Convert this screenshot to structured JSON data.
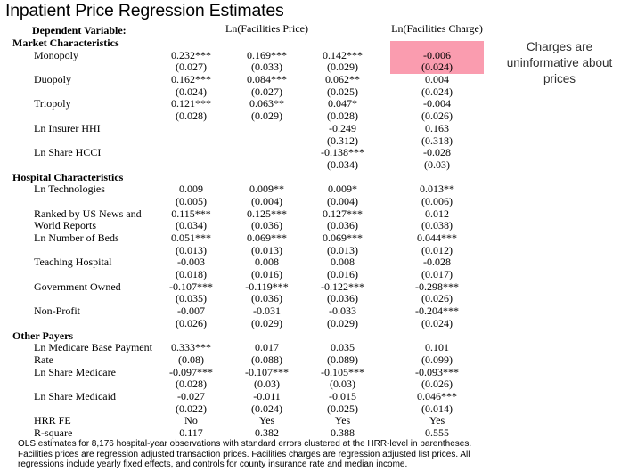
{
  "title": "Inpatient Price Regression Estimates",
  "highlight": {
    "color": "#FA9CAF"
  },
  "annotation": {
    "text": "Charges are uninformative about prices"
  },
  "table": {
    "dependent_variable_label": "Dependent Variable:",
    "column_groups": [
      {
        "label": "Ln(Facilities Price)",
        "columns": 3
      },
      {
        "label": "Ln(Facilities Charge)",
        "columns": 1
      }
    ],
    "rows": [
      {
        "type": "section",
        "label": "Market Characteristics"
      },
      {
        "type": "data",
        "label": "Monopoly",
        "cells": [
          "0.232***",
          "0.169***",
          "0.142***",
          "-0.006"
        ],
        "highlight_cols": [
          3
        ]
      },
      {
        "type": "data",
        "label": "",
        "cells": [
          "(0.027)",
          "(0.033)",
          "(0.029)",
          "(0.024)"
        ],
        "highlight_cols": [
          3
        ]
      },
      {
        "type": "data",
        "label": "Duopoly",
        "cells": [
          "0.162***",
          "0.084***",
          "0.062**",
          "0.004"
        ]
      },
      {
        "type": "data",
        "label": "",
        "cells": [
          "(0.024)",
          "(0.027)",
          "(0.025)",
          "(0.024)"
        ]
      },
      {
        "type": "data",
        "label": "Triopoly",
        "cells": [
          "0.121***",
          "0.063**",
          "0.047*",
          "-0.004"
        ]
      },
      {
        "type": "data",
        "label": "",
        "cells": [
          "(0.028)",
          "(0.029)",
          "(0.028)",
          "(0.026)"
        ]
      },
      {
        "type": "data",
        "label": "Ln Insurer HHI",
        "cells": [
          "",
          "",
          "-0.249",
          "0.163"
        ]
      },
      {
        "type": "data",
        "label": "",
        "cells": [
          "",
          "",
          "(0.312)",
          "(0.318)"
        ]
      },
      {
        "type": "data",
        "label": "Ln Share HCCI",
        "cells": [
          "",
          "",
          "-0.138***",
          "-0.028"
        ]
      },
      {
        "type": "data",
        "label": "",
        "cells": [
          "",
          "",
          "(0.034)",
          "(0.03)"
        ]
      },
      {
        "type": "section",
        "label": "Hospital Characteristics"
      },
      {
        "type": "data",
        "label": "Ln Technologies",
        "cells": [
          "0.009",
          "0.009**",
          "0.009*",
          "0.013**"
        ]
      },
      {
        "type": "data",
        "label": "",
        "cells": [
          "(0.005)",
          "(0.004)",
          "(0.004)",
          "(0.006)"
        ]
      },
      {
        "type": "data",
        "label": "Ranked by US News and",
        "cells": [
          "0.115***",
          "0.125***",
          "0.127***",
          "0.012"
        ]
      },
      {
        "type": "data",
        "label": "World Reports",
        "cells": [
          "(0.034)",
          "(0.036)",
          "(0.036)",
          "(0.038)"
        ]
      },
      {
        "type": "data",
        "label": "Ln Number of Beds",
        "cells": [
          "0.051***",
          "0.069***",
          "0.069***",
          "0.044***"
        ]
      },
      {
        "type": "data",
        "label": "",
        "cells": [
          "(0.013)",
          "(0.013)",
          "(0.013)",
          "(0.012)"
        ]
      },
      {
        "type": "data",
        "label": "Teaching Hospital",
        "cells": [
          "-0.003",
          "0.008",
          "0.008",
          "-0.028"
        ]
      },
      {
        "type": "data",
        "label": "",
        "cells": [
          "(0.018)",
          "(0.016)",
          "(0.016)",
          "(0.017)"
        ]
      },
      {
        "type": "data",
        "label": "Government Owned",
        "cells": [
          "-0.107***",
          "-0.119***",
          "-0.122***",
          "-0.298***"
        ]
      },
      {
        "type": "data",
        "label": "",
        "cells": [
          "(0.035)",
          "(0.036)",
          "(0.036)",
          "(0.026)"
        ]
      },
      {
        "type": "data",
        "label": "Non-Profit",
        "cells": [
          "-0.007",
          "-0.031",
          "-0.033",
          "-0.204***"
        ]
      },
      {
        "type": "data",
        "label": "",
        "cells": [
          "(0.026)",
          "(0.029)",
          "(0.029)",
          "(0.024)"
        ]
      },
      {
        "type": "section",
        "label": "Other Payers"
      },
      {
        "type": "data",
        "label": "Ln Medicare Base Payment",
        "cells": [
          "0.333***",
          "0.017",
          "0.035",
          "0.101"
        ]
      },
      {
        "type": "data",
        "label": "Rate",
        "cells": [
          "(0.08)",
          "(0.088)",
          "(0.089)",
          "(0.099)"
        ]
      },
      {
        "type": "data",
        "label": "Ln Share Medicare",
        "cells": [
          "-0.097***",
          "-0.107***",
          "-0.105***",
          "-0.093***"
        ]
      },
      {
        "type": "data",
        "label": "",
        "cells": [
          "(0.028)",
          "(0.03)",
          "(0.03)",
          "(0.026)"
        ]
      },
      {
        "type": "data",
        "label": "Ln Share Medicaid",
        "cells": [
          "-0.027",
          "-0.011",
          "-0.015",
          "0.046***"
        ]
      },
      {
        "type": "data",
        "label": "",
        "cells": [
          "(0.022)",
          "(0.024)",
          "(0.025)",
          "(0.014)"
        ]
      },
      {
        "type": "data",
        "label": "HRR FE",
        "cells": [
          "No",
          "Yes",
          "Yes",
          "Yes"
        ]
      },
      {
        "type": "data",
        "label": "R-square",
        "cells": [
          "0.117",
          "0.382",
          "0.388",
          "0.555"
        ]
      }
    ]
  },
  "footnote": "OLS estimates for 8,176 hospital-year observations with standard errors clustered at the HRR-level in parentheses. Facilities prices are regression adjusted transaction prices. Facilities charges are regression adjusted list prices. All regressions include yearly fixed effects, and controls for county insurance rate and median income."
}
